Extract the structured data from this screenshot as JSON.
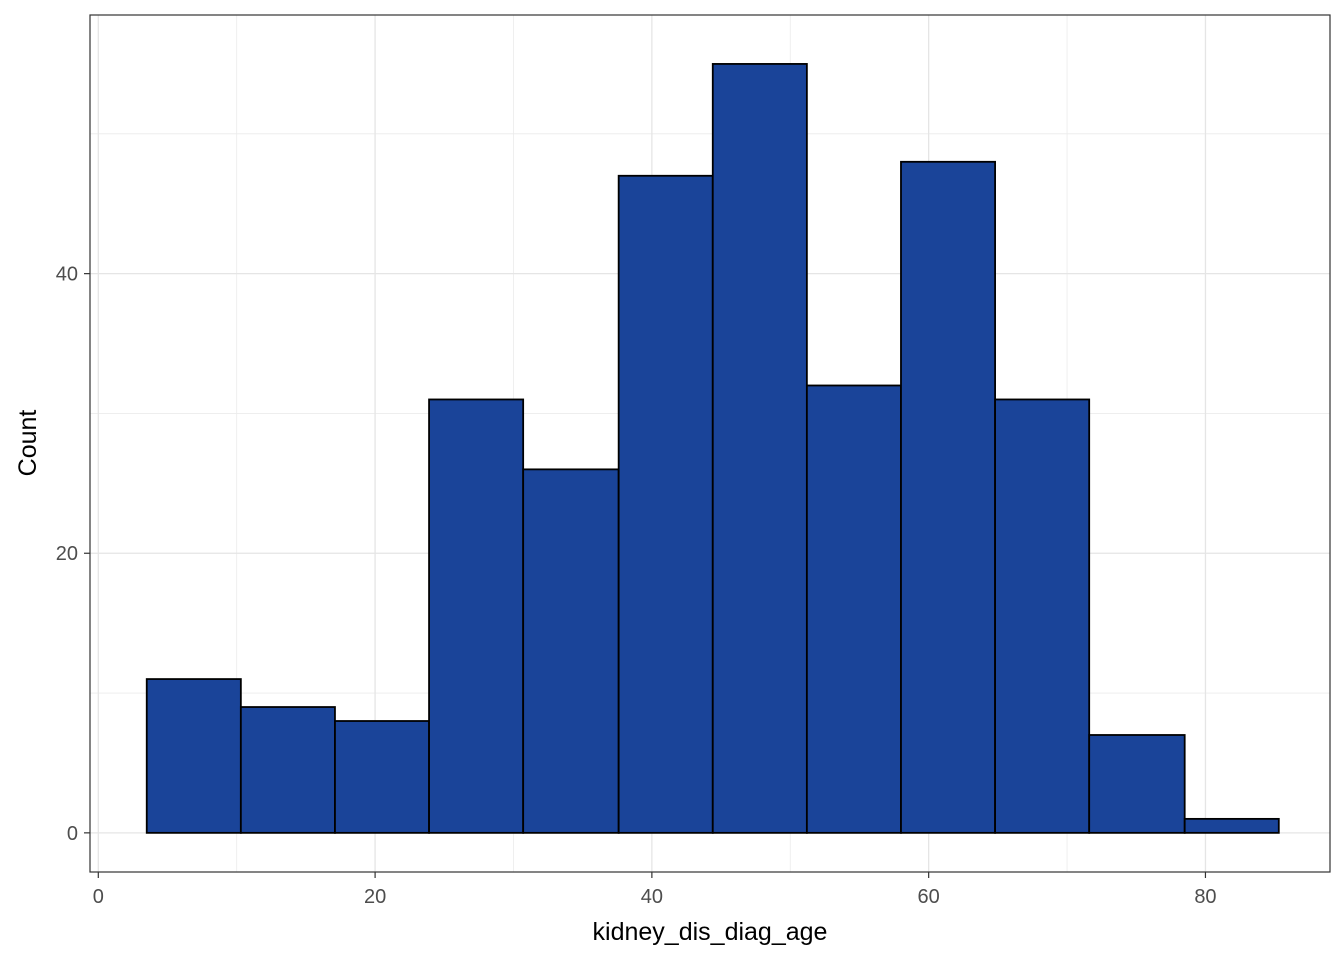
{
  "chart_data": {
    "type": "bar",
    "subtype": "histogram",
    "xlabel": "kidney_dis_diag_age",
    "ylabel": "Count",
    "xlim": [
      -0.6,
      89.0
    ],
    "ylim": [
      -2.8,
      58.5
    ],
    "x_ticks": [
      0,
      20,
      40,
      60,
      80
    ],
    "y_ticks": [
      0,
      20,
      40
    ],
    "bins": [
      {
        "x0": 3.5,
        "x1": 10.3,
        "count": 11
      },
      {
        "x0": 10.3,
        "x1": 17.1,
        "count": 9
      },
      {
        "x0": 17.1,
        "x1": 23.9,
        "count": 8
      },
      {
        "x0": 23.9,
        "x1": 30.7,
        "count": 31
      },
      {
        "x0": 30.7,
        "x1": 37.6,
        "count": 26
      },
      {
        "x0": 37.6,
        "x1": 44.4,
        "count": 47
      },
      {
        "x0": 44.4,
        "x1": 51.2,
        "count": 55
      },
      {
        "x0": 51.2,
        "x1": 58.0,
        "count": 32
      },
      {
        "x0": 58.0,
        "x1": 64.8,
        "count": 48
      },
      {
        "x0": 64.8,
        "x1": 71.6,
        "count": 31
      },
      {
        "x0": 71.6,
        "x1": 78.5,
        "count": 7
      },
      {
        "x0": 78.5,
        "x1": 85.3,
        "count": 1
      }
    ],
    "bar_fill": "#1a4499",
    "bar_stroke": "#000000",
    "grid": true,
    "legend": "none"
  }
}
